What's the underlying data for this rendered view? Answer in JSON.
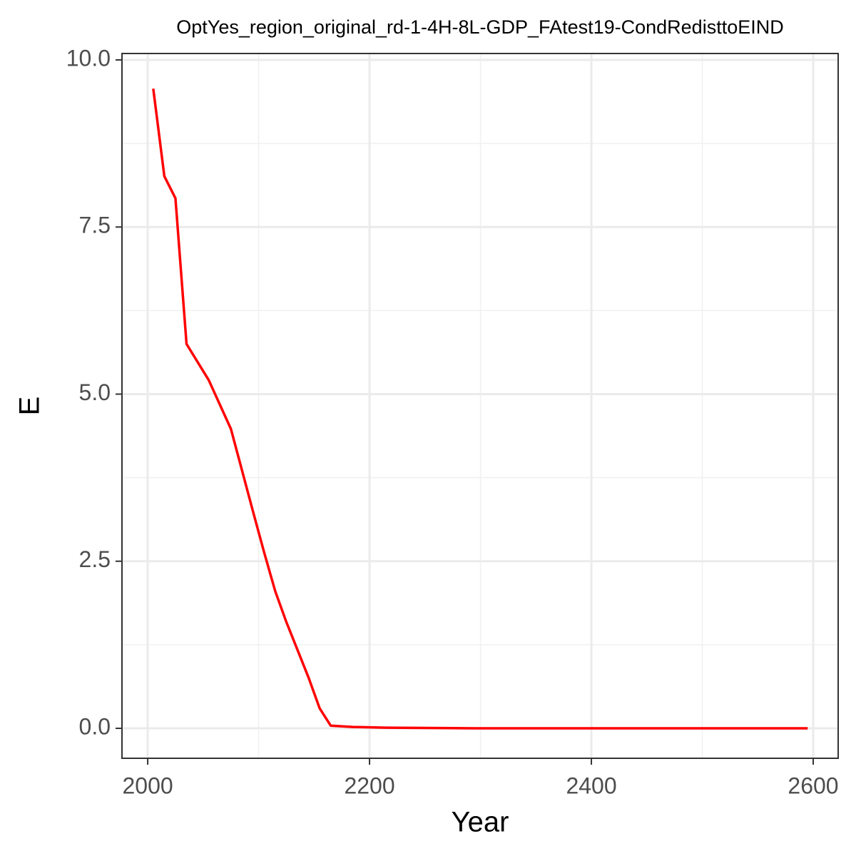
{
  "chart_data": {
    "type": "line",
    "title": "OptYes_region_original_rd-1-4H-8L-GDP_FAtest19-CondRedisttoEIND",
    "x_label": "Year",
    "y_label": "E",
    "x": [
      2005,
      2015,
      2025,
      2035,
      2055,
      2075,
      2095,
      2105,
      2115,
      2125,
      2145,
      2155,
      2165,
      2185,
      2215,
      2295,
      2595
    ],
    "series": [
      {
        "name": "E",
        "color": "#ff0000",
        "values": [
          9.57,
          8.26,
          7.93,
          5.75,
          5.21,
          4.48,
          3.24,
          2.63,
          2.05,
          1.59,
          0.76,
          0.3,
          0.04,
          0.02,
          0.01,
          0.0,
          0.0
        ]
      }
    ],
    "xlim": [
      1976.8,
      2622.5
    ],
    "xticks": [
      2000,
      2200,
      2400,
      2600
    ],
    "ylim": [
      -0.448,
      10.096
    ],
    "yticks": [
      {
        "value": 0,
        "label": "0.0"
      },
      2.5,
      {
        "value": 5,
        "label": "5.0"
      },
      7.5,
      {
        "value": 10,
        "label": "10.0"
      }
    ],
    "grid": true
  }
}
